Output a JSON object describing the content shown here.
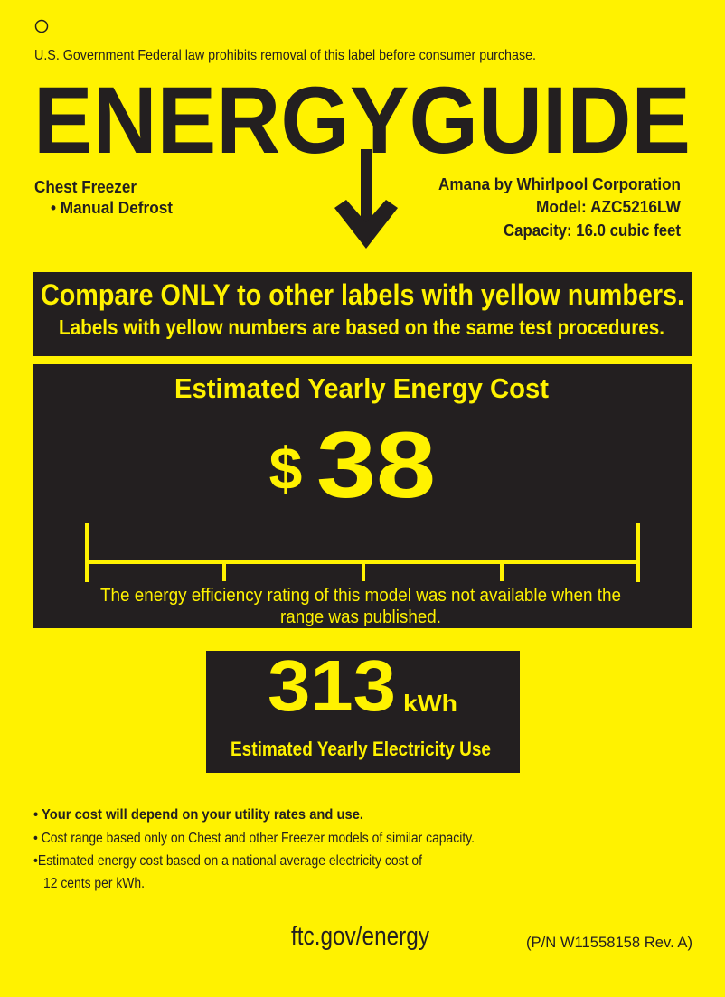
{
  "colors": {
    "label_yellow": "#FFF200",
    "panel_dark": "#231F20"
  },
  "header": {
    "legal_notice": "U.S. Government  Federal law prohibits removal of this label before consumer purchase.",
    "logo_text": "ENERGYGUIDE",
    "logo_icon": "down-arrow-icon"
  },
  "product": {
    "type": "Chest Freezer",
    "feature": "• Manual Defrost",
    "manufacturer": "Amana by Whirlpool Corporation",
    "model": "Model: AZC5216LW",
    "capacity": "Capacity: 16.0 cubic feet"
  },
  "compare_banner": {
    "line1": "Compare ONLY to other labels with yellow numbers.",
    "line2": "Labels with yellow numbers are based on the same test procedures."
  },
  "cost_panel": {
    "title": "Estimated Yearly Energy Cost",
    "currency": "$",
    "amount": "38",
    "range_note_line1": "The energy efficiency rating of this model was not available when the",
    "range_note_line2": "range was published."
  },
  "usage_panel": {
    "value": "313",
    "unit": "kWh",
    "label": "Estimated Yearly Electricity Use"
  },
  "notes": [
    "• Your cost will depend on your utility rates and use.",
    "• Cost range based only on Chest and other Freezer models of similar capacity.",
    "•Estimated energy cost based on a national average electricity cost of",
    "12 cents per kWh."
  ],
  "footer": {
    "website": "ftc.gov/energy",
    "part_number": "(P/N W11558158 Rev. A)"
  }
}
